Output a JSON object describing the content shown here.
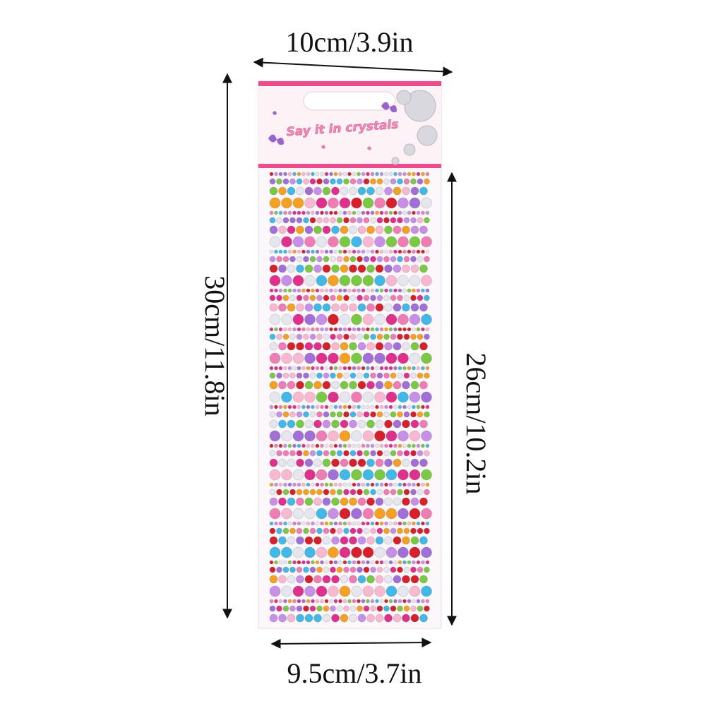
{
  "header": {
    "slogan": "Say it in crystals"
  },
  "dimensions": {
    "top_width": "10cm/3.9in",
    "total_height": "30cm/11.8in",
    "sheet_height": "26cm/10.2in",
    "bottom_width": "9.5cm/3.7in"
  }
}
